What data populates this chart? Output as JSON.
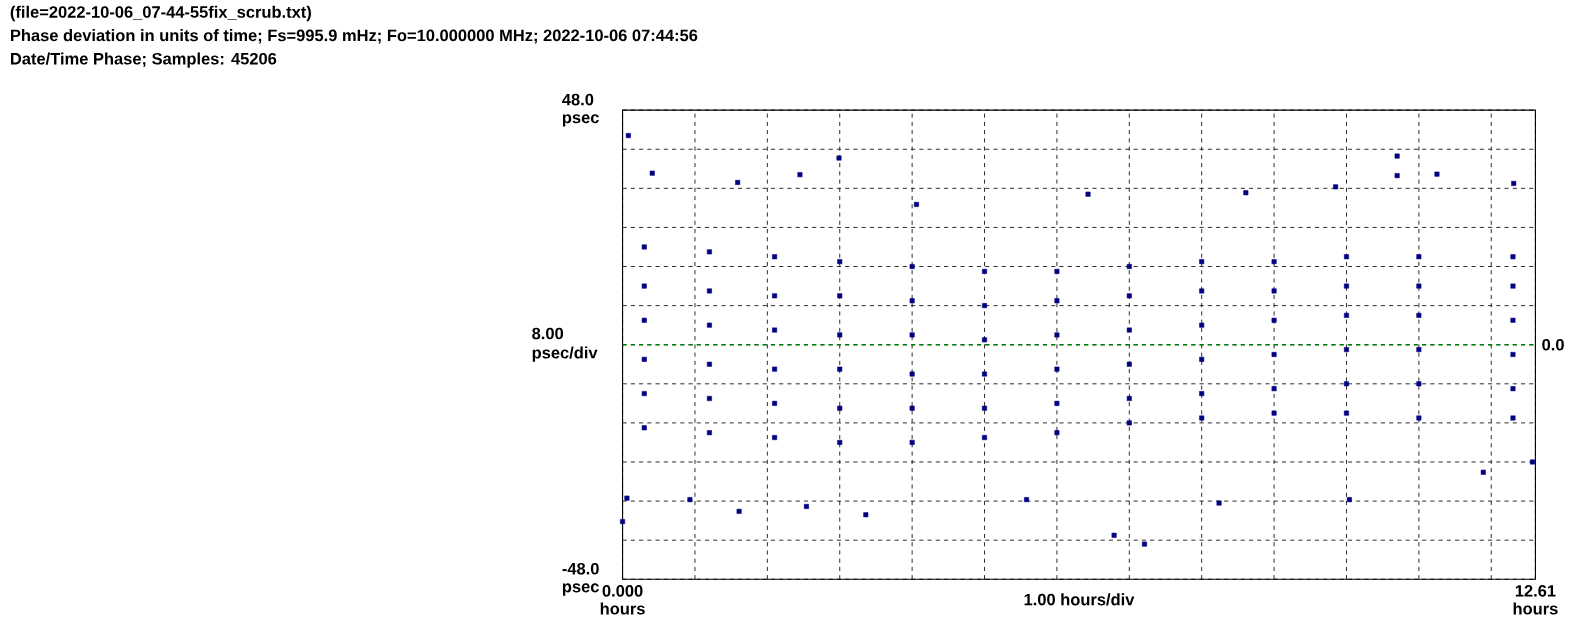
{
  "chart_data": {
    "type": "scatter",
    "title": "(file=2022-10-06_07-44-55fix_scrub.txt)",
    "subtitle": "Phase deviation in units of time;   Fs=995.9 mHz; Fo=10.000000 MHz; 2022-10-06 07:44:56",
    "annotations": [
      "Date/Time Phase;  Samples: 45206"
    ],
    "xlabel": "1.00 hours/div",
    "ylabel": "8.00 psec/div",
    "xlim": [
      0,
      12.61
    ],
    "ylim": [
      -48,
      48
    ],
    "xticks": [
      {
        "value": 0,
        "label": "0.000 hours"
      },
      {
        "value": 1,
        "label": null
      },
      {
        "value": 2,
        "label": null
      },
      {
        "value": 3,
        "label": null
      },
      {
        "value": 4,
        "label": null
      },
      {
        "value": 5,
        "label": null
      },
      {
        "value": 6,
        "label": null
      },
      {
        "value": 7,
        "label": null
      },
      {
        "value": 8,
        "label": null
      },
      {
        "value": 9,
        "label": null
      },
      {
        "value": 10,
        "label": null
      },
      {
        "value": 11,
        "label": null
      },
      {
        "value": 12,
        "label": null
      },
      {
        "value": 12.61,
        "label": "12.61 hours"
      }
    ],
    "yticks": [
      {
        "value": -48,
        "label": "-48.0 psec"
      },
      {
        "value": -40,
        "label": null
      },
      {
        "value": -32,
        "label": null
      },
      {
        "value": -24,
        "label": null
      },
      {
        "value": -16,
        "label": null
      },
      {
        "value": -8,
        "label": null
      },
      {
        "value": 0,
        "label": null
      },
      {
        "value": 8,
        "label": null
      },
      {
        "value": 16,
        "label": null
      },
      {
        "value": 24,
        "label": null
      },
      {
        "value": 32,
        "label": null
      },
      {
        "value": 40,
        "label": null
      },
      {
        "value": 48,
        "label": "48.0 psec"
      }
    ],
    "grid": true,
    "marker": "square",
    "ref_lines": [
      {
        "axis": "y",
        "value": 0,
        "label": "0.0",
        "color": "#008000",
        "line_style": "dashed"
      }
    ],
    "series": [
      {
        "color": "#000080",
        "x": [
          0.3,
          0.3,
          0.3,
          0.3,
          0.3,
          0.3,
          1.2,
          1.2,
          1.2,
          1.2,
          1.2,
          1.2,
          2.1,
          2.1,
          2.1,
          2.1,
          2.1,
          2.1,
          3.0,
          3.0,
          3.0,
          3.0,
          3.0,
          3.0,
          4.0,
          4.0,
          4.0,
          4.0,
          4.0,
          4.0,
          5.0,
          5.0,
          5.0,
          5.0,
          5.0,
          5.0,
          6.0,
          6.0,
          6.0,
          6.0,
          6.0,
          6.0,
          7.0,
          7.0,
          7.0,
          7.0,
          7.0,
          7.0,
          8.0,
          8.0,
          8.0,
          8.0,
          8.0,
          8.0,
          9.0,
          9.0,
          9.0,
          9.0,
          9.0,
          9.0,
          10.0,
          10.0,
          10.0,
          10.0,
          10.0,
          10.0,
          11.0,
          11.0,
          11.0,
          11.0,
          11.0,
          11.0,
          12.3,
          12.3,
          12.3,
          12.3,
          12.3,
          12.3,
          0.08,
          0.41,
          0.0,
          0.06,
          1.61,
          2.45,
          2.99,
          3.36,
          1.59,
          6.79,
          7.21,
          10.7,
          11.25,
          10.7,
          12.31,
          12.57,
          11.89,
          10.04,
          8.24,
          5.58,
          4.06,
          6.43,
          8.61,
          9.85,
          0.93,
          2.54
        ],
        "values": [
          20,
          12,
          5,
          -3,
          -10,
          -17,
          19,
          11,
          4,
          -4,
          -11,
          -18,
          18,
          10,
          3,
          -5,
          -12,
          -19,
          17,
          10,
          2,
          -5,
          -13,
          -20,
          16,
          9,
          2,
          -6,
          -13,
          -20,
          15,
          8,
          1,
          -6,
          -13,
          -19,
          15,
          9,
          2,
          -5,
          -12,
          -18,
          16,
          10,
          3,
          -4,
          -11,
          -16,
          17,
          11,
          4,
          -3,
          -10,
          -15,
          17,
          11,
          5,
          -2,
          -9,
          -14,
          18,
          12,
          6,
          -1,
          -8,
          -14,
          18,
          12,
          6,
          -1,
          -8,
          -15,
          18,
          12,
          5,
          -2,
          -9,
          -15,
          42.8,
          35.1,
          -36.2,
          -31.4,
          -34.1,
          34.8,
          38.2,
          -34.8,
          33.2,
          -39.0,
          -40.8,
          34.6,
          34.9,
          38.6,
          33.0,
          -24,
          -26.1,
          -31.7,
          -32.4,
          -31.7,
          28.7,
          30.8,
          31.1,
          32.3,
          -31.7,
          -33.1
        ]
      }
    ]
  }
}
